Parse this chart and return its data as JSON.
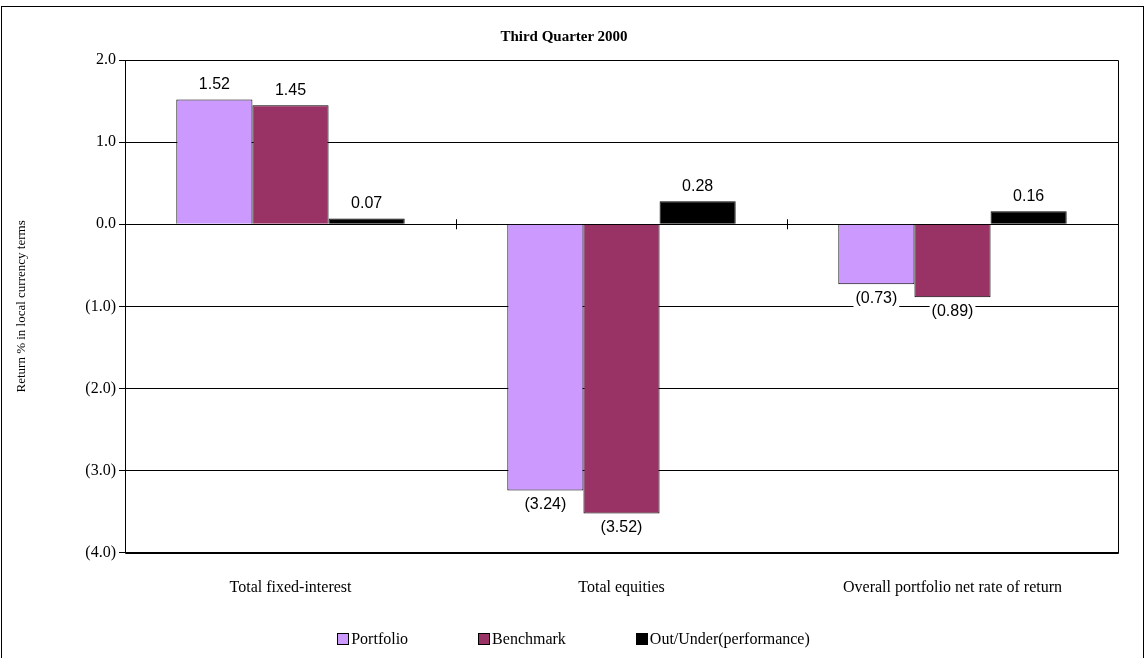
{
  "chart_data": {
    "type": "bar",
    "title": "Third Quarter 2000",
    "ylabel": "Return % in local currency terms",
    "categories": [
      "Total fixed-interest",
      "Total equities",
      "Overall portfolio net rate of return"
    ],
    "series": [
      {
        "name": "Portfolio",
        "color": "#cc99ff",
        "values": [
          1.52,
          -3.24,
          -0.73
        ],
        "value_labels": [
          "1.52",
          "(3.24)",
          "(0.73)"
        ]
      },
      {
        "name": "Benchmark",
        "color": "#993366",
        "values": [
          1.45,
          -3.52,
          -0.89
        ],
        "value_labels": [
          "1.45",
          "(3.52)",
          "(0.89)"
        ]
      },
      {
        "name": "Out/Under(performance)",
        "color": "#000000",
        "values": [
          0.07,
          0.28,
          0.16
        ],
        "value_labels": [
          "0.07",
          "0.28",
          "0.16"
        ]
      }
    ],
    "ylim": [
      -4,
      2
    ],
    "yticks": [
      {
        "value": -4,
        "label": "(4.0)"
      },
      {
        "value": -3,
        "label": "(3.0)"
      },
      {
        "value": -2,
        "label": "(2.0)"
      },
      {
        "value": -1,
        "label": "(1.0)"
      },
      {
        "value": 0,
        "label": "0.0"
      },
      {
        "value": 1,
        "label": "1.0"
      },
      {
        "value": 2,
        "label": "2.0"
      }
    ],
    "grid": "y",
    "legend": "bottom"
  }
}
